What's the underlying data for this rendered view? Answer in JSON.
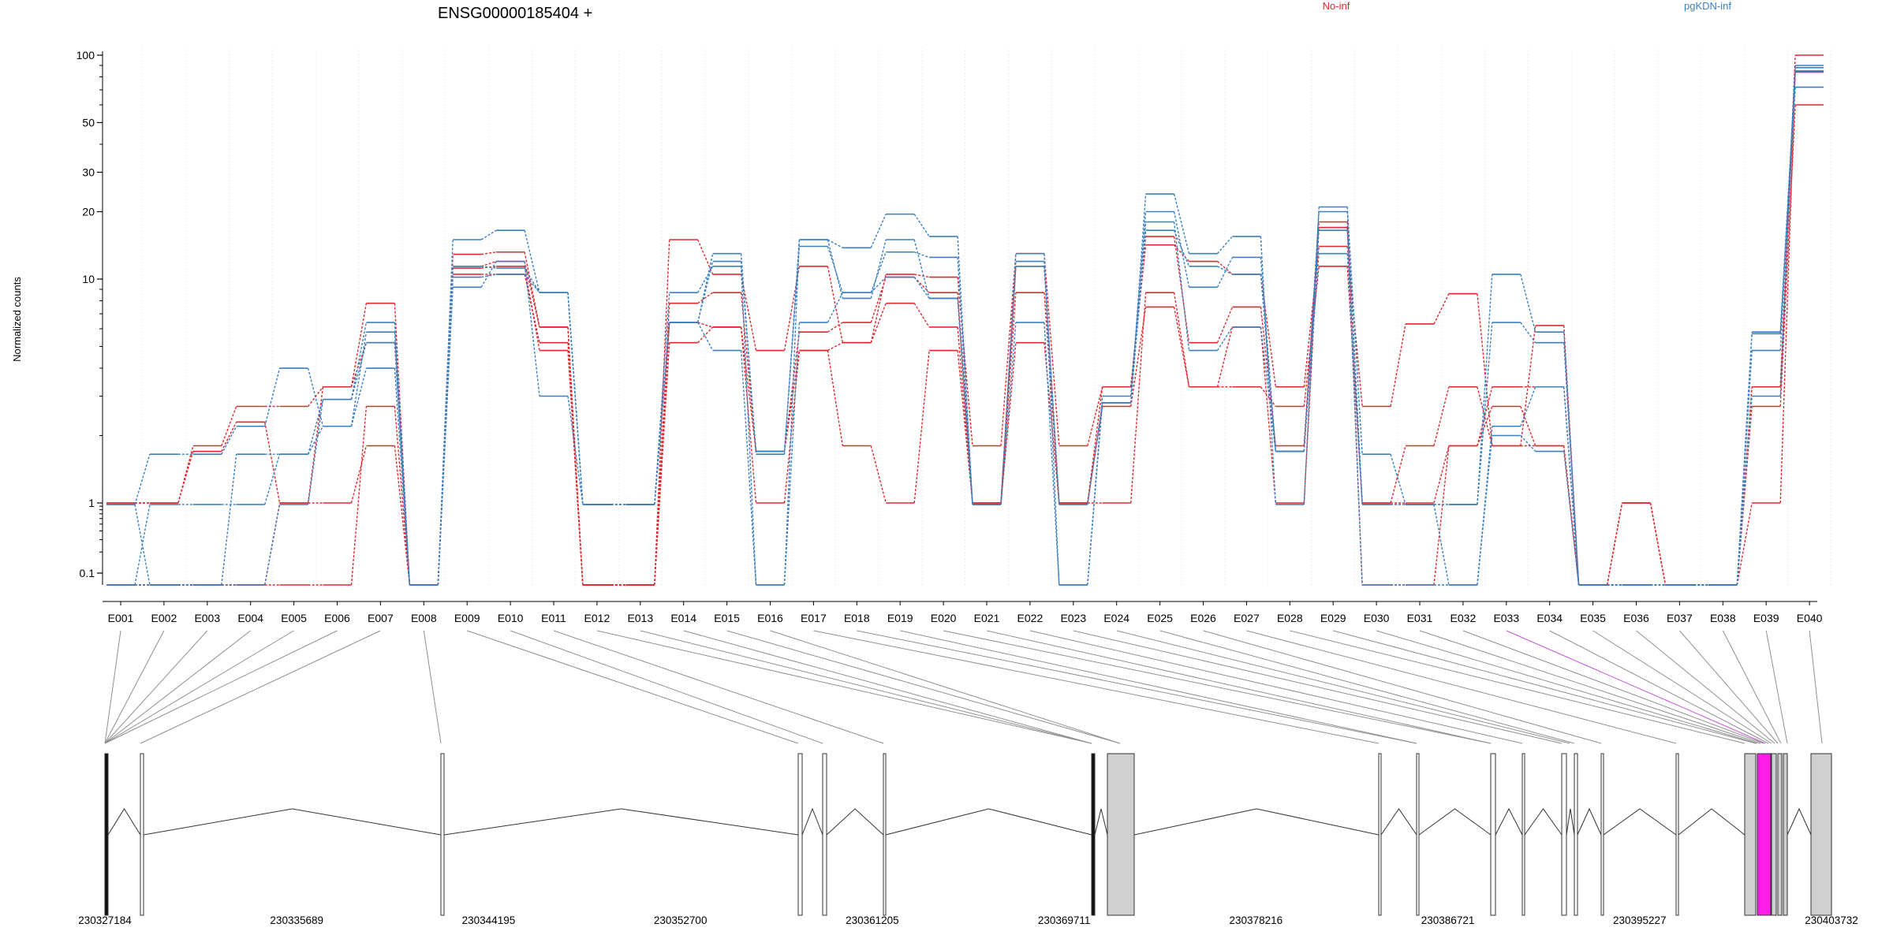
{
  "chart_data": {
    "type": "line",
    "title": "ENSG00000185404 +",
    "ylabel": "Normalized counts",
    "xlabel": "",
    "yscale": "log-with-zero-bin",
    "ylim": [
      0.07,
      100
    ],
    "yticks": [
      "100",
      "50",
      "30",
      "20",
      "10",
      "1",
      "0.1"
    ],
    "ytick_values": [
      100,
      50,
      30,
      20,
      10,
      1,
      0.1
    ],
    "grid": "vertical dotted lines per exon",
    "legend": "top (inline labels)",
    "colors": {
      "No-inf": "#e0282e",
      "pgKDN-inf": "#3b7fc0",
      "highlight": "#ff1ee8"
    },
    "categories": [
      "E001",
      "E002",
      "E003",
      "E004",
      "E005",
      "E006",
      "E007",
      "E008",
      "E009",
      "E010",
      "E011",
      "E012",
      "E013",
      "E014",
      "E015",
      "E016",
      "E017",
      "E018",
      "E019",
      "E020",
      "E021",
      "E022",
      "E023",
      "E024",
      "E025",
      "E026",
      "E027",
      "E028",
      "E029",
      "E030",
      "E031",
      "E032",
      "E033",
      "E034",
      "E035",
      "E036",
      "E037",
      "E038",
      "E039",
      "E040"
    ],
    "series": [
      {
        "name": "No-inf",
        "values": [
          1,
          1,
          1.8,
          2.7,
          2.7,
          3.3,
          7.8,
          0.07,
          12.9,
          13.2,
          6.1,
          0.07,
          0.07,
          15,
          10.5,
          4.8,
          11.4,
          5.2,
          10.5,
          10.2,
          1.8,
          13,
          1.8,
          3.3,
          14.2,
          12,
          10.5,
          3.3,
          14,
          2.7,
          6.3,
          8.6,
          1.8,
          6.2,
          0.07,
          1,
          0.07,
          0.07,
          3.3,
          100
        ]
      },
      {
        "name": "No-inf",
        "values": [
          0.07,
          0.07,
          0.07,
          0.07,
          1,
          1,
          1.8,
          0.07,
          11.2,
          11.4,
          4.8,
          0.07,
          0.07,
          5.2,
          6.1,
          1,
          4.8,
          1.8,
          1,
          4.8,
          1,
          5.2,
          1,
          2.7,
          7.5,
          3.3,
          3.3,
          2.7,
          11.4,
          1,
          1.8,
          3.3,
          1.8,
          1.8,
          0.07,
          1,
          0.07,
          0.07,
          1,
          84
        ]
      },
      {
        "name": "No-inf",
        "values": [
          0.07,
          0.07,
          0.07,
          0.07,
          0.07,
          0.07,
          2.7,
          0.07,
          10.5,
          10.5,
          5.2,
          0.07,
          0.07,
          7.8,
          8.7,
          1.7,
          4.8,
          5.2,
          7.8,
          6.1,
          1,
          8.7,
          1,
          1,
          8.7,
          3.3,
          6.1,
          1,
          17,
          1,
          1,
          1.8,
          2.7,
          1.8,
          0.07,
          1,
          0.07,
          0.07,
          2.7,
          60
        ]
      },
      {
        "name": "No-inf",
        "values": [
          1,
          1,
          1.7,
          2.3,
          1,
          3.3,
          5.2,
          0.07,
          11.4,
          12,
          6.1,
          0.07,
          0.07,
          6.4,
          6.1,
          1.7,
          5.8,
          6.4,
          10.2,
          8.7,
          1,
          11.4,
          1,
          3.3,
          15.5,
          5.2,
          7.5,
          1.8,
          18,
          0.07,
          0.07,
          1.8,
          3.3,
          3.3,
          0.07,
          0.07,
          0.07,
          0.07,
          3.3,
          85
        ]
      },
      {
        "name": "pgKDN-inf",
        "values": [
          0.95,
          1.65,
          1.65,
          2.2,
          4,
          2.2,
          5.8,
          0.07,
          15,
          16.5,
          8.7,
          0.95,
          0.95,
          8.7,
          11.4,
          0.07,
          15,
          13.8,
          19.5,
          15.5,
          0.95,
          12,
          0.95,
          2.8,
          24,
          13,
          15.5,
          0.95,
          21,
          1.65,
          0.95,
          0.95,
          10.5,
          5.8,
          0.07,
          0.07,
          0.07,
          0.07,
          5.7,
          72
        ]
      },
      {
        "name": "pgKDN-inf",
        "values": [
          0.07,
          0.95,
          0.95,
          0.95,
          1.65,
          2.2,
          4,
          0.07,
          9.2,
          12,
          3,
          0.95,
          0.95,
          6.4,
          4.8,
          0.07,
          6.4,
          8.7,
          10.2,
          8.2,
          0.95,
          6.4,
          0.07,
          2.8,
          18,
          4.8,
          6.1,
          1.7,
          13,
          0.95,
          0.95,
          0.95,
          6.4,
          5.2,
          0.07,
          0.07,
          0.07,
          0.07,
          4.8,
          90
        ]
      },
      {
        "name": "pgKDN-inf",
        "values": [
          0.07,
          0.07,
          0.07,
          1.65,
          1.65,
          2.9,
          5.2,
          0.07,
          10.2,
          10.5,
          8.7,
          0.95,
          0.95,
          6.4,
          12,
          1.7,
          14,
          8.7,
          13.2,
          12.5,
          0.95,
          11.4,
          0.95,
          2.8,
          16.5,
          11.4,
          10.5,
          1.7,
          16.5,
          0.07,
          0.07,
          0.07,
          2.2,
          3.3,
          0.07,
          0.07,
          0.07,
          0.07,
          3,
          88
        ]
      },
      {
        "name": "pgKDN-inf",
        "values": [
          0.95,
          0.07,
          0.07,
          0.07,
          0.95,
          2.9,
          6.4,
          0.07,
          11.4,
          11.2,
          8.7,
          0.95,
          0.95,
          6.4,
          13,
          1.65,
          15,
          8.2,
          15,
          8.2,
          0.95,
          13,
          0.07,
          3,
          20,
          9.2,
          12.5,
          1.7,
          20,
          0.95,
          0.95,
          0.07,
          2,
          1.7,
          0.07,
          0.07,
          0.07,
          0.07,
          5.8,
          85
        ]
      }
    ],
    "highlighted_exon": "E033",
    "genomic_axis": {
      "start": 230327184,
      "end": 230403732,
      "tick_labels": [
        "230327184",
        "230335689",
        "230344195",
        "230352700",
        "230361205",
        "230369711",
        "230378216",
        "230386721",
        "230395227",
        "230403732"
      ]
    },
    "legend_entries": [
      "No-inf",
      "pgKDN-inf"
    ]
  }
}
